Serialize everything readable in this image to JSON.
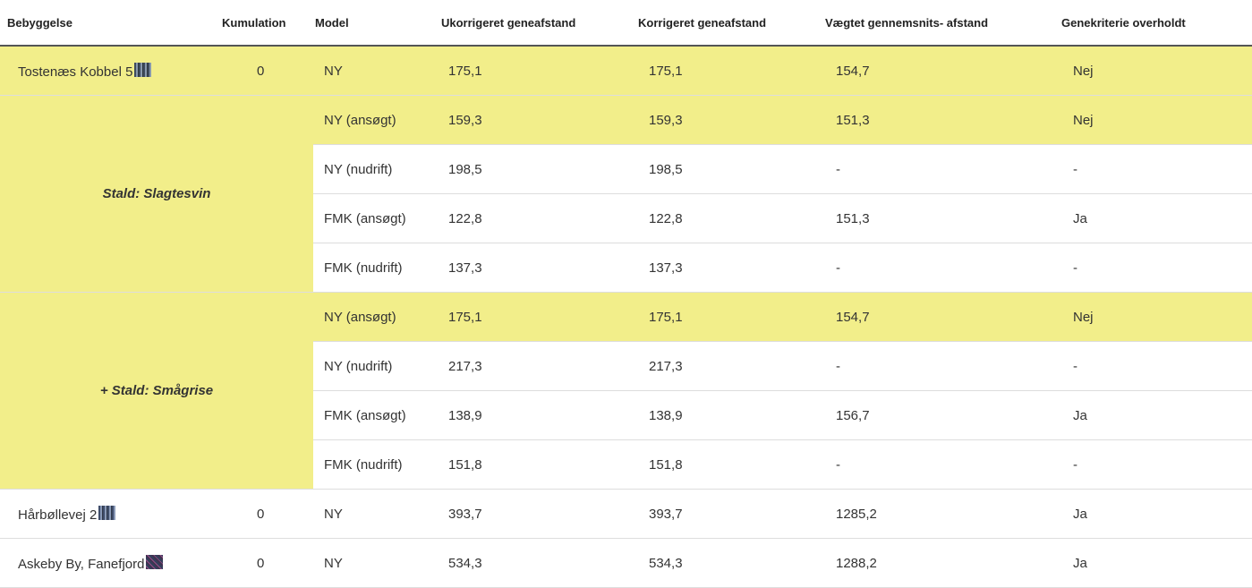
{
  "table": {
    "header": [
      "Bebyggelse",
      "Kumulation",
      "Model",
      "Ukorrigeret geneafstand",
      "Korrigeret geneafstand",
      "Vægtet gennemsnits- afstand",
      "Genekriterie overholdt"
    ],
    "sections": [
      {
        "rows": [
          [
            "Tostenæs Kobbel 5",
            "0",
            "NY",
            "175,1",
            "175,1",
            "154,7",
            "Nej"
          ]
        ]
      },
      {
        "label": "Stald: Slagtesvin",
        "rows": [
          [
            "NY (ansøgt)",
            "159,3",
            "159,3",
            "151,3",
            "Nej"
          ],
          [
            "NY (nudrift)",
            "198,5",
            "198,5",
            "-",
            "-"
          ],
          [
            "FMK (ansøgt)",
            "122,8",
            "122,8",
            "151,3",
            "Ja"
          ],
          [
            "FMK (nudrift)",
            "137,3",
            "137,3",
            "-",
            "-"
          ]
        ]
      },
      {
        "label": "+ Stald: Smågrise",
        "rows": [
          [
            "NY (ansøgt)",
            "175,1",
            "175,1",
            "154,7",
            "Nej"
          ],
          [
            "NY (nudrift)",
            "217,3",
            "217,3",
            "-",
            "-"
          ],
          [
            "FMK (ansøgt)",
            "138,9",
            "138,9",
            "156,7",
            "Ja"
          ],
          [
            "FMK (nudrift)",
            "151,8",
            "151,8",
            "-",
            "-"
          ]
        ]
      },
      {
        "rows": [
          [
            "Hårbøllevej 2",
            "0",
            "NY",
            "393,7",
            "393,7",
            "1285,2",
            "Ja"
          ],
          [
            "Askeby By, Fanefjord",
            "0",
            "NY",
            "534,3",
            "534,3",
            "1288,2",
            "Ja"
          ]
        ]
      }
    ]
  }
}
